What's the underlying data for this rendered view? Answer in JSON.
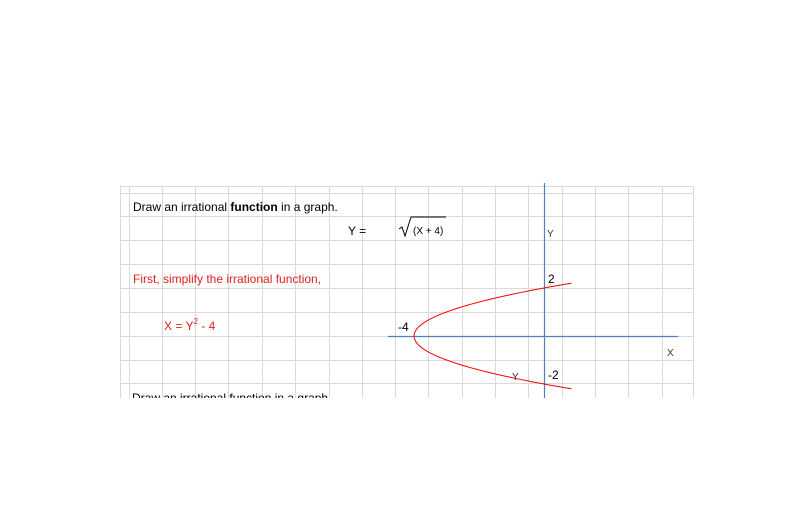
{
  "sheet": {
    "title_pre": "Draw an irrational ",
    "title_bold": "function",
    "title_post": " in a graph.",
    "eq_lhs": "Y =",
    "eq_radicand": "(X + 4)",
    "step_text": "First, simplify the irrational function,",
    "eq2_lhs": "X = Y",
    "eq2_exp": "2",
    "eq2_rhs": " - 4",
    "cut_text": "Draw an irrational function in a graph",
    "colors": {
      "grid": "#d9d9d9",
      "axis": "#4f81bd",
      "curve": "#ff0000",
      "red_text": "#e0201e"
    }
  },
  "graph": {
    "y_axis_label": "Y",
    "x_axis_label": "X",
    "lower_y_label": "Y",
    "tick_pos": "2",
    "tick_neg": "-2",
    "vertex_label": "-4",
    "curve": {
      "equation": "X = Y^2 - 4",
      "vertex": [
        -4,
        0
      ],
      "y_range": [
        -2.2,
        2.2
      ]
    }
  }
}
